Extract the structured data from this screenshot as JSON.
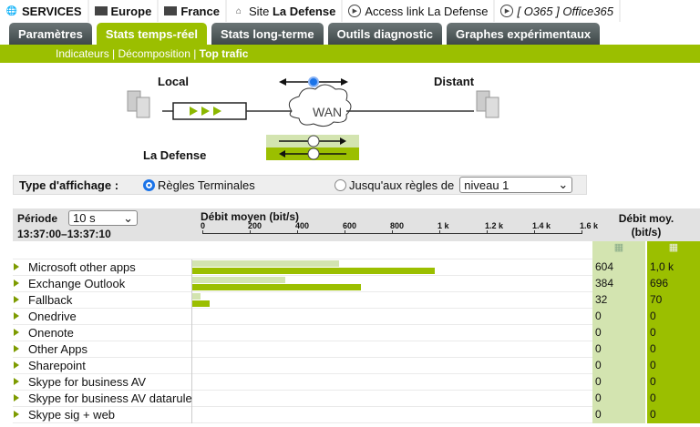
{
  "breadcrumb": [
    {
      "icon": "globe-icon",
      "label": "SERVICES",
      "bold": true
    },
    {
      "icon": "folder-icon",
      "label": "Europe",
      "bold": true
    },
    {
      "icon": "folder-icon",
      "label": "France",
      "bold": true
    },
    {
      "icon": "house-icon",
      "prefix": "Site ",
      "label": "La Defense"
    },
    {
      "icon": "play-circle-icon",
      "label": "Access link La Defense"
    },
    {
      "icon": "play-circle-icon",
      "label": "[ O365 ] Office365"
    }
  ],
  "tabs": [
    {
      "label": "Paramètres"
    },
    {
      "label": "Stats temps-réel",
      "active": true
    },
    {
      "label": "Stats long-terme"
    },
    {
      "label": "Outils diagnostic"
    },
    {
      "label": "Graphes expérimentaux"
    }
  ],
  "subnav": {
    "items": [
      "Indicateurs",
      "Décomposition",
      "Top trafic"
    ],
    "sep": " | ",
    "active": "Top trafic"
  },
  "diagram": {
    "local": "Local",
    "distant": "Distant",
    "site": "La Defense",
    "wan": "WAN"
  },
  "display_type": {
    "label": "Type d'affichage :",
    "option1": "Règles Terminales",
    "option2": "Jusqu'aux règles de",
    "level": "niveau 1",
    "selected": "Règles Terminales"
  },
  "table": {
    "period_label": "Période",
    "period_value": "10 s",
    "time_range": "13:37:00–13:37:10",
    "chart_title": "Débit moyen (bit/s)",
    "axis_ticks": [
      "0",
      "200",
      "400",
      "600",
      "800",
      "1 k",
      "1.2 k",
      "1.4 k",
      "1.6 k"
    ],
    "col_title": "Débit moy.",
    "col_unit": "(bit/s)",
    "colors": {
      "light": "#d3e4b0",
      "dark": "#9bbf00"
    },
    "rows": [
      {
        "name": "Microsoft other apps",
        "v1": "604",
        "v2": "1,0 k",
        "n1": 604,
        "n2": 1000
      },
      {
        "name": "Exchange Outlook",
        "v1": "384",
        "v2": "696",
        "n1": 384,
        "n2": 696
      },
      {
        "name": "Fallback",
        "v1": "32",
        "v2": "70",
        "n1": 32,
        "n2": 70
      },
      {
        "name": "Onedrive",
        "v1": "0",
        "v2": "0",
        "n1": 0,
        "n2": 0
      },
      {
        "name": "Onenote",
        "v1": "0",
        "v2": "0",
        "n1": 0,
        "n2": 0
      },
      {
        "name": "Other Apps",
        "v1": "0",
        "v2": "0",
        "n1": 0,
        "n2": 0
      },
      {
        "name": "Sharepoint",
        "v1": "0",
        "v2": "0",
        "n1": 0,
        "n2": 0
      },
      {
        "name": "Skype for business AV",
        "v1": "0",
        "v2": "0",
        "n1": 0,
        "n2": 0
      },
      {
        "name": "Skype for business AV datarule",
        "v1": "0",
        "v2": "0",
        "n1": 0,
        "n2": 0
      },
      {
        "name": "Skype sig + web",
        "v1": "0",
        "v2": "0",
        "n1": 0,
        "n2": 0
      }
    ]
  }
}
